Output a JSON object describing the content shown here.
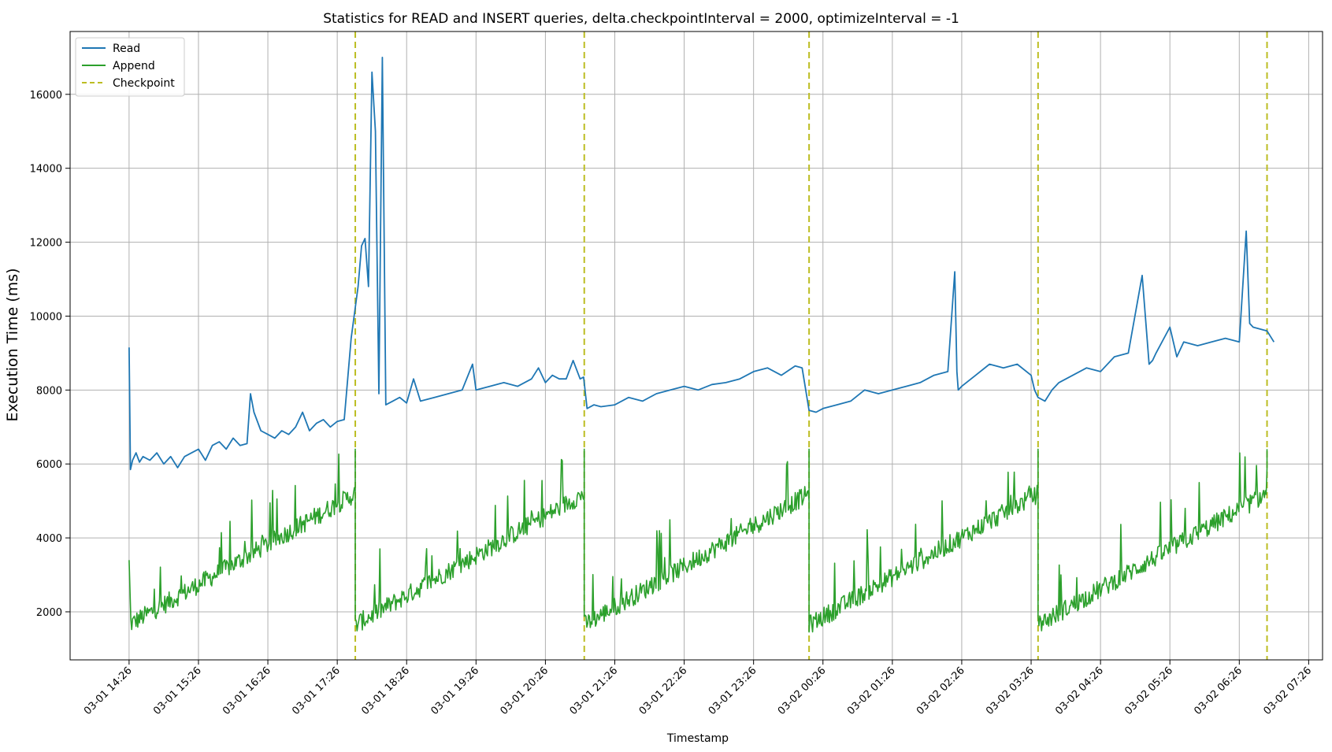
{
  "chart_data": {
    "type": "line",
    "title": "Statistics for READ and INSERT queries, delta.checkpointInterval = 2000, optimizeInterval = -1",
    "xlabel": "Timestamp",
    "ylabel": "Execution Time (ms)",
    "x_ticks": [
      "03-01 14:26",
      "03-01 15:26",
      "03-01 16:26",
      "03-01 17:26",
      "03-01 18:26",
      "03-01 19:26",
      "03-01 20:26",
      "03-01 21:26",
      "03-01 22:26",
      "03-01 23:26",
      "03-02 00:26",
      "03-02 01:26",
      "03-02 02:26",
      "03-02 03:26",
      "03-02 04:26",
      "03-02 05:26",
      "03-02 06:26",
      "03-02 07:26"
    ],
    "x_tick_hours": [
      0,
      1,
      2,
      3,
      4,
      5,
      6,
      7,
      8,
      9,
      10,
      11,
      12,
      13,
      14,
      15,
      16,
      17
    ],
    "xlim_hours": [
      -0.85,
      17.2
    ],
    "y_ticks": [
      2000,
      4000,
      6000,
      8000,
      10000,
      12000,
      14000,
      16000
    ],
    "ylim": [
      700,
      17700
    ],
    "grid": true,
    "legend_position": "top-left",
    "checkpoints_hours": [
      3.26,
      6.56,
      9.8,
      13.1,
      16.4
    ],
    "series": [
      {
        "name": "Read",
        "color": "#1f77b4",
        "style": "solid",
        "x_hours": [
          0,
          0.02,
          0.05,
          0.1,
          0.15,
          0.2,
          0.3,
          0.4,
          0.5,
          0.6,
          0.7,
          0.8,
          0.9,
          1.0,
          1.1,
          1.2,
          1.3,
          1.4,
          1.5,
          1.6,
          1.7,
          1.75,
          1.8,
          1.9,
          2.0,
          2.1,
          2.2,
          2.3,
          2.4,
          2.5,
          2.6,
          2.7,
          2.8,
          2.9,
          3.0,
          3.1,
          3.2,
          3.3,
          3.35,
          3.4,
          3.45,
          3.5,
          3.55,
          3.6,
          3.65,
          3.7,
          3.8,
          3.9,
          4.0,
          4.1,
          4.2,
          4.4,
          4.6,
          4.8,
          4.95,
          5.0,
          5.2,
          5.4,
          5.6,
          5.8,
          5.9,
          6.0,
          6.1,
          6.2,
          6.3,
          6.4,
          6.5,
          6.55,
          6.6,
          6.7,
          6.8,
          7.0,
          7.2,
          7.4,
          7.6,
          7.8,
          8.0,
          8.2,
          8.4,
          8.6,
          8.8,
          8.9,
          9.0,
          9.2,
          9.4,
          9.6,
          9.7,
          9.8,
          9.9,
          10.0,
          10.2,
          10.4,
          10.6,
          10.8,
          11.0,
          11.2,
          11.4,
          11.6,
          11.8,
          11.9,
          11.93,
          11.95,
          12.0,
          12.2,
          12.4,
          12.6,
          12.8,
          13.0,
          13.05,
          13.1,
          13.2,
          13.3,
          13.4,
          13.6,
          13.8,
          14.0,
          14.2,
          14.4,
          14.6,
          14.7,
          14.75,
          14.8,
          15.0,
          15.1,
          15.2,
          15.4,
          15.6,
          15.8,
          16.0,
          16.1,
          16.15,
          16.2,
          16.4,
          16.5
        ],
        "values": [
          9150,
          5850,
          6100,
          6300,
          6050,
          6200,
          6100,
          6300,
          6000,
          6200,
          5900,
          6200,
          6300,
          6400,
          6100,
          6500,
          6600,
          6400,
          6700,
          6500,
          6550,
          7900,
          7400,
          6900,
          6800,
          6700,
          6900,
          6800,
          7000,
          7400,
          6900,
          7100,
          7200,
          7000,
          7150,
          7200,
          9400,
          10800,
          11900,
          12100,
          10800,
          16600,
          15000,
          7900,
          17000,
          7600,
          7700,
          7800,
          7650,
          8300,
          7700,
          7800,
          7900,
          8000,
          8700,
          8000,
          8100,
          8200,
          8100,
          8300,
          8600,
          8200,
          8400,
          8300,
          8300,
          8800,
          8300,
          8350,
          7500,
          7600,
          7550,
          7600,
          7800,
          7700,
          7900,
          8000,
          8100,
          8000,
          8150,
          8200,
          8300,
          8400,
          8500,
          8600,
          8400,
          8650,
          8600,
          7450,
          7400,
          7500,
          7600,
          7700,
          8000,
          7900,
          8000,
          8100,
          8200,
          8400,
          8500,
          11200,
          8500,
          8000,
          8100,
          8400,
          8700,
          8600,
          8700,
          8400,
          8000,
          7800,
          7700,
          8000,
          8200,
          8400,
          8600,
          8500,
          8900,
          9000,
          11100,
          8700,
          8800,
          9000,
          9700,
          8900,
          9300,
          9200,
          9300,
          9400,
          9300,
          12300,
          9800,
          9700,
          9600,
          9300
        ]
      },
      {
        "name": "Append",
        "color": "#2ca02c",
        "style": "solid"
      },
      {
        "name": "Checkpoint",
        "color": "#bcbd22",
        "style": "dashed"
      }
    ]
  }
}
